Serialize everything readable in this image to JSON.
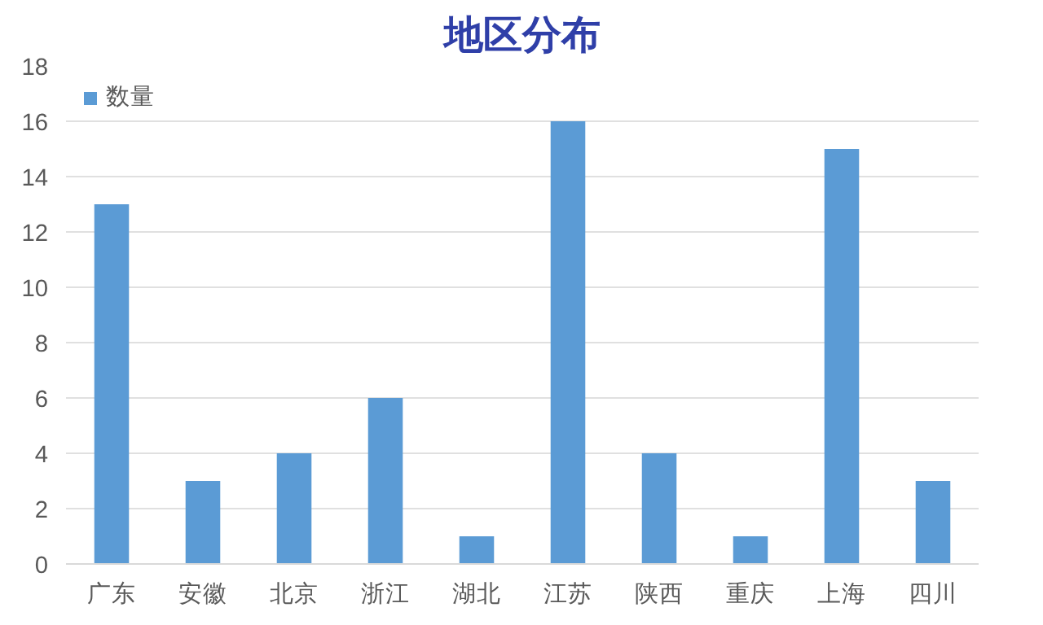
{
  "chart_data": {
    "type": "bar",
    "title": "地区分布",
    "categories": [
      "广东",
      "安徽",
      "北京",
      "浙江",
      "湖北",
      "江苏",
      "陕西",
      "重庆",
      "上海",
      "四川"
    ],
    "series": [
      {
        "name": "数量",
        "color": "#5b9bd5",
        "values": [
          13,
          3,
          4,
          6,
          1,
          16,
          4,
          1,
          15,
          3
        ]
      }
    ],
    "ylim": [
      0,
      18
    ],
    "yticks": [
      0,
      2,
      4,
      6,
      8,
      10,
      12,
      14,
      16,
      18
    ],
    "grid": "y",
    "legend": "top left"
  }
}
